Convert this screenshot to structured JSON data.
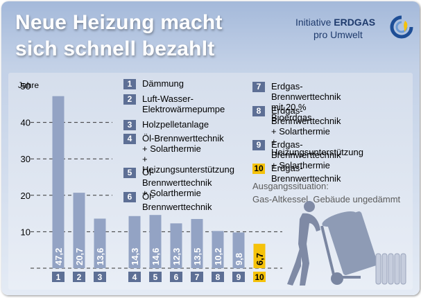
{
  "title": {
    "line1": "Neue Heizung macht",
    "line2": "sich schnell bezahlt"
  },
  "logo": {
    "line1_prefix": "Initiative ",
    "line1_brand": "ERDGAS",
    "line2": "pro Umwelt"
  },
  "chart_data": {
    "type": "bar",
    "ylabel": "Jahre",
    "ylim": [
      0,
      50
    ],
    "yticks": [
      10,
      20,
      30,
      40,
      50
    ],
    "grid": "dashed",
    "categories": [
      "1",
      "2",
      "3",
      "4",
      "5",
      "6",
      "7",
      "8",
      "9",
      "10"
    ],
    "values": [
      47.2,
      20.7,
      13.6,
      14.3,
      14.6,
      12.3,
      13.5,
      10.2,
      9.8,
      6.7
    ],
    "value_labels": [
      "47,2",
      "20,7",
      "13,6",
      "14,3",
      "14,6",
      "12,3",
      "13,5",
      "10,2",
      "9,8",
      "6,7"
    ],
    "highlight_index": 9,
    "colors": {
      "bar": "#93a3c4",
      "highlight": "#f5c20a",
      "label_box": "#5d6f95"
    }
  },
  "legend": [
    {
      "num": "1",
      "text": "Dämmung"
    },
    {
      "num": "2",
      "text": "Luft-Wasser-\nElektrowärmepumpe"
    },
    {
      "num": "3",
      "text": "Holzpelletanlage"
    },
    {
      "num": "4",
      "text": "Öl-Brennwerttechnik\n+ Solarthermie\n+ Heizungsunterstützung"
    },
    {
      "num": "5",
      "text": "Öl-Brennwerttechnik\n+ Solarthermie"
    },
    {
      "num": "6",
      "text": "Öl-Brennwerttechnik"
    },
    {
      "num": "7",
      "text": "Erdgas-Brennwerttechnik\nmit 20 % Bioerdgas"
    },
    {
      "num": "8",
      "text": "Erdgas-Brennwerttechnik\n+ Solarthermie\n+ Heizungsunterstützung"
    },
    {
      "num": "9",
      "text": "Erdgas-Brennwerttechnik\n+ Solarthermie"
    },
    {
      "num": "10",
      "text": "Erdgas-Brennwerttechnik"
    }
  ],
  "note": {
    "line1": "Ausgangssituation:",
    "line2": "Gas-Altkessel, Gebäude ungedämmt"
  }
}
